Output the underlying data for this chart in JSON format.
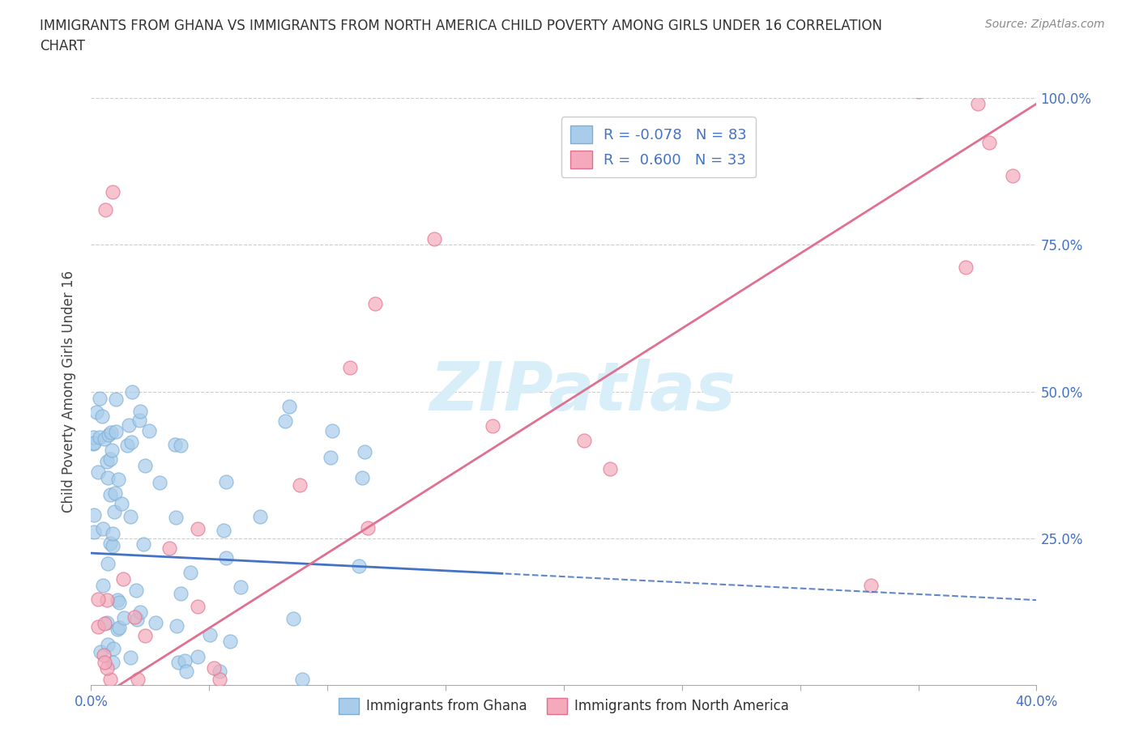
{
  "title": "IMMIGRANTS FROM GHANA VS IMMIGRANTS FROM NORTH AMERICA CHILD POVERTY AMONG GIRLS UNDER 16 CORRELATION\nCHART",
  "source": "Source: ZipAtlas.com",
  "ylabel": "Child Poverty Among Girls Under 16",
  "xlim": [
    0.0,
    0.4
  ],
  "ylim": [
    0.0,
    1.0
  ],
  "ghana_color": "#A8CCEA",
  "ghana_edge": "#7AAED6",
  "north_america_color": "#F4AABA",
  "north_america_edge": "#E07090",
  "ghana_R": -0.078,
  "ghana_N": 83,
  "north_america_R": 0.6,
  "north_america_N": 33,
  "background_color": "#ffffff",
  "blue_line_color": "#4472C4",
  "pink_line_color": "#E07090",
  "watermark_color": "#D8EEF8"
}
